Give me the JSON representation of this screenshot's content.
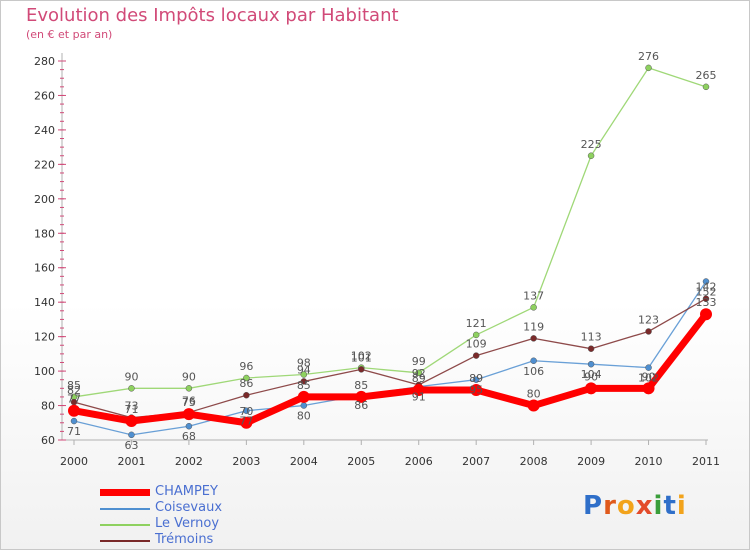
{
  "chart_data": {
    "type": "line",
    "title": "Evolution des Impôts locaux par Habitant",
    "subtitle": "(en € et par an)",
    "xlabel": "",
    "ylabel": "",
    "x": [
      "2000",
      "2001",
      "2002",
      "2003",
      "2004",
      "2005",
      "2006",
      "2007",
      "2008",
      "2009",
      "2010",
      "2011"
    ],
    "ylim": [
      60,
      280
    ],
    "yticks": [
      "60",
      "80",
      "100",
      "120",
      "140",
      "160",
      "180",
      "200",
      "220",
      "240",
      "260",
      "280"
    ],
    "grid": false,
    "legend_position": "bottom-left",
    "series": [
      {
        "name": "CHAMPEY",
        "color": "#ff0000",
        "values": [
          77,
          71,
          75,
          70,
          85,
          85,
          89,
          89,
          80,
          90,
          90,
          133
        ],
        "labels": [
          "77",
          "71",
          "75",
          "70",
          "85",
          "85",
          "89",
          "89",
          "80",
          "90",
          "90",
          "133"
        ]
      },
      {
        "name": "Coisevaux",
        "color": "#4f8fd0",
        "values": [
          71,
          63,
          68,
          77,
          80,
          86,
          91,
          95,
          106,
          104,
          102,
          152
        ],
        "labels": [
          "71",
          "63",
          "68",
          "77",
          "80",
          "86",
          "91",
          "95",
          "106",
          "104",
          "102",
          "152"
        ]
      },
      {
        "name": "Le Vernoy",
        "color": "#8ed15f",
        "values": [
          85,
          90,
          90,
          96,
          98,
          102,
          99,
          121,
          137,
          225,
          276,
          265
        ],
        "labels": [
          "85",
          "90",
          "90",
          "96",
          "98",
          "102",
          "99",
          "121",
          "137",
          "225",
          "276",
          "265"
        ]
      },
      {
        "name": "Trémoins",
        "color": "#7a2a2a",
        "values": [
          82,
          73,
          76,
          86,
          94,
          101,
          92,
          109,
          119,
          113,
          123,
          142
        ],
        "labels": [
          "82",
          "73",
          "76",
          "86",
          "94",
          "101",
          "92",
          "109",
          "119",
          "113",
          "123",
          "142"
        ]
      }
    ]
  },
  "legend": {
    "items": [
      {
        "label": "CHAMPEY"
      },
      {
        "label": "Coisevaux"
      },
      {
        "label": "Le Vernoy"
      },
      {
        "label": "Trémoins"
      }
    ]
  },
  "logo": {
    "text": "Proxiti"
  }
}
